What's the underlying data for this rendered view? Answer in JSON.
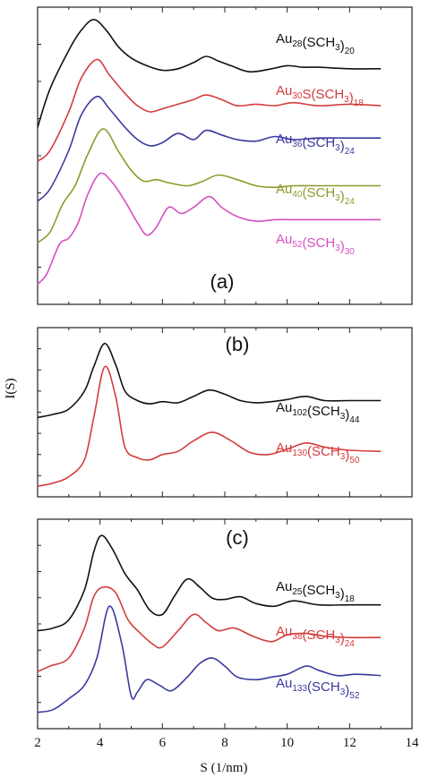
{
  "chart_data": {
    "type": "line",
    "xlabel": "S (1/nm)",
    "ylabel": "I(S)",
    "xlim": [
      2,
      14
    ],
    "xticks": [
      "2",
      "4",
      "6",
      "8",
      "10",
      "12",
      "14"
    ],
    "colors": {
      "black": "#111111",
      "red": "#d43c3c",
      "blue": "#3a3aa0",
      "olive": "#8f9a2a",
      "magenta": "#d64fc2"
    },
    "panels": [
      {
        "tag": "(a)",
        "series": [
          {
            "name": "Au28(SCH3)20",
            "color": "black",
            "x": [
              2.0,
              2.4,
              3.0,
              3.4,
              3.8,
              4.2,
              4.6,
              5.0,
              5.5,
              6.0,
              6.5,
              7.0,
              7.4,
              7.8,
              8.2,
              8.8,
              9.5,
              10.0,
              10.5,
              11.0,
              12.0,
              13.0
            ],
            "y": [
              0.3,
              0.55,
              0.8,
              0.93,
              1.0,
              0.93,
              0.82,
              0.75,
              0.7,
              0.67,
              0.68,
              0.72,
              0.76,
              0.73,
              0.7,
              0.66,
              0.68,
              0.7,
              0.69,
              0.69,
              0.68,
              0.68
            ]
          },
          {
            "name": "Au30S(SCH3)18",
            "color": "red",
            "x": [
              2.0,
              2.4,
              3.0,
              3.4,
              3.9,
              4.3,
              4.8,
              5.2,
              5.6,
              6.0,
              6.5,
              7.0,
              7.4,
              7.9,
              8.4,
              9.0,
              9.6,
              10.2,
              11.0,
              12.0,
              13.0
            ],
            "y": [
              0.08,
              0.15,
              0.4,
              0.62,
              0.74,
              0.64,
              0.52,
              0.44,
              0.4,
              0.42,
              0.45,
              0.48,
              0.51,
              0.48,
              0.44,
              0.45,
              0.44,
              0.46,
              0.44,
              0.45,
              0.44
            ]
          },
          {
            "name": "Au36(SCH3)24",
            "color": "blue",
            "x": [
              2.0,
              2.4,
              3.0,
              3.4,
              3.9,
              4.3,
              4.8,
              5.2,
              5.6,
              6.0,
              6.5,
              7.0,
              7.4,
              7.9,
              8.4,
              9.0,
              9.6,
              10.2,
              11.0,
              12.0,
              13.0
            ],
            "y": [
              -0.18,
              -0.1,
              0.15,
              0.38,
              0.5,
              0.42,
              0.3,
              0.22,
              0.18,
              0.2,
              0.26,
              0.22,
              0.28,
              0.25,
              0.22,
              0.21,
              0.24,
              0.22,
              0.23,
              0.23,
              0.23
            ]
          },
          {
            "name": "Au40(SCH3)24",
            "color": "olive",
            "x": [
              2.0,
              2.4,
              2.8,
              3.2,
              3.6,
              4.1,
              4.6,
              5.0,
              5.4,
              5.8,
              6.2,
              6.8,
              7.3,
              7.8,
              8.4,
              9.0,
              9.6,
              10.2,
              11.0,
              12.0,
              13.0
            ],
            "y": [
              -0.45,
              -0.38,
              -0.2,
              -0.08,
              0.12,
              0.29,
              0.14,
              0.02,
              -0.05,
              -0.04,
              -0.06,
              -0.08,
              -0.05,
              -0.01,
              -0.04,
              -0.08,
              -0.09,
              -0.08,
              -0.08,
              -0.08,
              -0.08
            ]
          },
          {
            "name": "Au52(SCH3)30",
            "color": "magenta",
            "x": [
              2.0,
              2.3,
              2.7,
              3.0,
              3.3,
              3.6,
              4.0,
              4.4,
              4.8,
              5.2,
              5.5,
              5.8,
              6.2,
              6.6,
              7.0,
              7.5,
              7.9,
              8.4,
              9.0,
              9.6,
              10.2,
              11.0,
              12.0,
              13.0
            ],
            "y": [
              -0.72,
              -0.65,
              -0.46,
              -0.42,
              -0.32,
              -0.14,
              0.0,
              -0.06,
              -0.18,
              -0.32,
              -0.4,
              -0.35,
              -0.22,
              -0.26,
              -0.22,
              -0.15,
              -0.22,
              -0.28,
              -0.31,
              -0.3,
              -0.3,
              -0.3,
              -0.3,
              -0.3
            ]
          }
        ]
      },
      {
        "tag": "(b)",
        "series": [
          {
            "name": "Au102(SCH3)44",
            "color": "black",
            "x": [
              2.0,
              2.5,
              3.0,
              3.5,
              3.8,
              4.15,
              4.5,
              4.8,
              5.2,
              5.6,
              6.0,
              6.5,
              7.0,
              7.5,
              8.0,
              8.5,
              9.0,
              9.5,
              10.0,
              10.6,
              11.2,
              12.0,
              13.0
            ],
            "y": [
              0.3,
              0.33,
              0.38,
              0.55,
              0.78,
              1.0,
              0.8,
              0.55,
              0.46,
              0.43,
              0.45,
              0.44,
              0.5,
              0.56,
              0.52,
              0.46,
              0.44,
              0.45,
              0.47,
              0.5,
              0.46,
              0.46,
              0.46
            ]
          },
          {
            "name": "Au130(SCH3)50",
            "color": "red",
            "x": [
              2.0,
              2.5,
              3.0,
              3.5,
              3.8,
              4.15,
              4.5,
              4.8,
              5.2,
              5.6,
              6.0,
              6.5,
              7.0,
              7.6,
              8.2,
              8.8,
              9.4,
              10.0,
              10.6,
              11.2,
              12.0,
              13.0
            ],
            "y": [
              -0.35,
              -0.32,
              -0.26,
              -0.1,
              0.3,
              0.78,
              0.5,
              0.02,
              -0.08,
              -0.1,
              -0.05,
              -0.02,
              0.08,
              0.16,
              0.08,
              -0.03,
              -0.05,
              0.0,
              0.06,
              0.02,
              -0.01,
              -0.02
            ]
          }
        ]
      },
      {
        "tag": "(c)",
        "series": [
          {
            "name": "Au25(SCH3)18",
            "color": "black",
            "x": [
              2.0,
              2.5,
              3.0,
              3.5,
              3.8,
              4.05,
              4.4,
              4.8,
              5.2,
              5.6,
              6.0,
              6.4,
              6.8,
              7.2,
              7.6,
              8.0,
              8.5,
              9.0,
              9.6,
              10.2,
              11.0,
              12.0,
              13.0
            ],
            "y": [
              0.3,
              0.32,
              0.38,
              0.6,
              0.88,
              1.0,
              0.9,
              0.72,
              0.6,
              0.45,
              0.42,
              0.56,
              0.68,
              0.62,
              0.54,
              0.53,
              0.55,
              0.5,
              0.48,
              0.52,
              0.49,
              0.49,
              0.49
            ]
          },
          {
            "name": "Au38(SCH3)24",
            "color": "red",
            "x": [
              2.0,
              2.4,
              3.0,
              3.5,
              3.8,
              4.1,
              4.5,
              4.9,
              5.3,
              5.7,
              6.0,
              6.5,
              7.0,
              7.4,
              7.8,
              8.3,
              8.9,
              9.5,
              10.0,
              10.6,
              11.2,
              12.0,
              13.0
            ],
            "y": [
              0.0,
              0.04,
              0.1,
              0.32,
              0.55,
              0.62,
              0.58,
              0.38,
              0.28,
              0.2,
              0.18,
              0.3,
              0.42,
              0.36,
              0.3,
              0.32,
              0.26,
              0.22,
              0.27,
              0.28,
              0.26,
              0.25,
              0.25
            ]
          },
          {
            "name": "Au133(SCH3)52",
            "color": "blue",
            "x": [
              2.0,
              2.5,
              3.0,
              3.5,
              3.9,
              4.3,
              4.7,
              5.0,
              5.2,
              5.5,
              5.9,
              6.3,
              6.8,
              7.2,
              7.6,
              8.0,
              8.4,
              9.0,
              9.5,
              10.0,
              10.6,
              11.0,
              11.6,
              12.2,
              13.0
            ],
            "y": [
              -0.3,
              -0.28,
              -0.2,
              -0.1,
              0.1,
              0.48,
              0.2,
              -0.18,
              -0.15,
              -0.06,
              -0.1,
              -0.14,
              -0.04,
              0.06,
              0.1,
              0.04,
              -0.04,
              -0.06,
              -0.04,
              -0.02,
              0.04,
              0.01,
              -0.03,
              -0.02,
              -0.03
            ]
          }
        ]
      }
    ]
  }
}
